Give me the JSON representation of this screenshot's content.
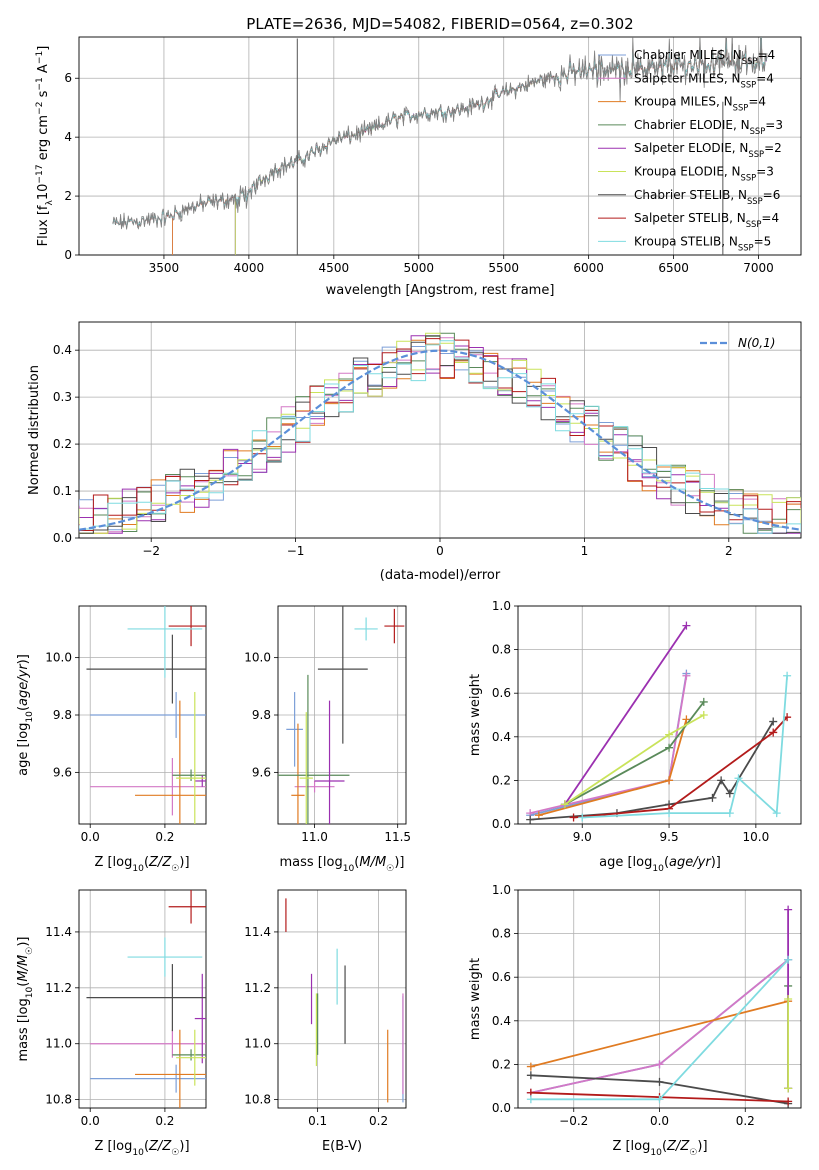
{
  "figure_title": "PLATE=2636, MJD=54082, FIBERID=0564, z=0.302",
  "colors": {
    "Chabrier MILES": "#7c9fd8",
    "Salpeter MILES": "#d378c6",
    "Kroupa MILES": "#e07b22",
    "Chabrier ELODIE": "#5a8a5a",
    "Salpeter ELODIE": "#9b30b0",
    "Kroupa ELODIE": "#c9e35a",
    "Chabrier STELIB": "#4b4b4b",
    "Salpeter STELIB": "#b31b1b",
    "Kroupa STELIB": "#7fdbe0",
    "gaussian": "#5b8fd9",
    "data": "#808080"
  },
  "chart_data": [
    {
      "id": "spectrum",
      "type": "line",
      "xlabel": "wavelength [Angstrom, rest frame]",
      "ylabel": "Flux [f_λ 10^-17 erg cm^-2 s^-1 A^-1]",
      "xlim": [
        3000,
        7250
      ],
      "ylim": [
        0,
        7.4
      ],
      "xticks": [
        3500,
        4000,
        4500,
        5000,
        5500,
        6000,
        6500,
        7000
      ],
      "yticks": [
        0,
        2,
        4,
        6
      ],
      "grid": true,
      "legend": "right",
      "legend_entries": [
        {
          "name": "Chabrier MILES",
          "nssp": "4"
        },
        {
          "name": "Salpeter MILES",
          "nssp": "4"
        },
        {
          "name": "Kroupa MILES",
          "nssp": "4"
        },
        {
          "name": "Chabrier ELODIE",
          "nssp": "3"
        },
        {
          "name": "Salpeter ELODIE",
          "nssp": "2"
        },
        {
          "name": "Kroupa ELODIE",
          "nssp": "3"
        },
        {
          "name": "Chabrier STELIB",
          "nssp": "6"
        },
        {
          "name": "Salpeter STELIB",
          "nssp": "4"
        },
        {
          "name": "Kroupa STELIB",
          "nssp": "5"
        }
      ],
      "continuum": [
        [
          3200,
          1.05
        ],
        [
          3500,
          1.25
        ],
        [
          3700,
          1.7
        ],
        [
          3900,
          1.9
        ],
        [
          4050,
          2.4
        ],
        [
          4150,
          2.9
        ],
        [
          4300,
          3.2
        ],
        [
          4500,
          3.9
        ],
        [
          4700,
          4.2
        ],
        [
          4850,
          4.6
        ],
        [
          5000,
          4.8
        ],
        [
          5200,
          4.9
        ],
        [
          5300,
          5.0
        ],
        [
          5500,
          5.5
        ],
        [
          5700,
          5.9
        ],
        [
          5900,
          6.2
        ],
        [
          6100,
          6.3
        ],
        [
          6300,
          6.3
        ],
        [
          6500,
          6.4
        ],
        [
          6700,
          6.5
        ],
        [
          7050,
          6.6
        ]
      ]
    },
    {
      "id": "residuals",
      "type": "line",
      "xlabel": "(data-model)/error",
      "ylabel": "Normed distribution",
      "xlim": [
        -2.5,
        2.5
      ],
      "ylim": [
        0,
        0.46
      ],
      "xticks": [
        -2,
        -1,
        0,
        1,
        2
      ],
      "yticks": [
        0.0,
        0.1,
        0.2,
        0.3,
        0.4
      ],
      "grid": true,
      "legend": "top-right",
      "legend_label": "N(0,1)"
    },
    {
      "id": "age-vs-Z",
      "type": "scatter",
      "xlabel": "Z [log10(Z/Z☉)]",
      "ylabel": "age  [log10(age/yr)]",
      "xlim": [
        -0.03,
        0.31
      ],
      "ylim": [
        9.42,
        10.18
      ],
      "xticks": [
        0.0,
        0.2
      ],
      "yticks": [
        9.6,
        9.8,
        10.0
      ],
      "grid": true,
      "points": [
        {
          "model": "Chabrier MILES",
          "x": 0.23,
          "xerr": 0.23,
          "y": 9.8,
          "yerr": 0.08
        },
        {
          "model": "Salpeter MILES",
          "x": 0.22,
          "xerr": 0.22,
          "y": 9.55,
          "yerr": 0.1
        },
        {
          "model": "Kroupa MILES",
          "x": 0.24,
          "xerr": 0.12,
          "y": 9.52,
          "yerr": 0.33
        },
        {
          "model": "Chabrier ELODIE",
          "x": 0.27,
          "xerr": 0.05,
          "y": 9.59,
          "yerr": 0.02
        },
        {
          "model": "Salpeter ELODIE",
          "x": 0.3,
          "xerr": 0.02,
          "y": 9.57,
          "yerr": 0.02
        },
        {
          "model": "Kroupa ELODIE",
          "x": 0.28,
          "xerr": 0.05,
          "y": 9.58,
          "yerr": 0.3
        },
        {
          "model": "Chabrier STELIB",
          "x": 0.22,
          "xerr": 0.23,
          "y": 9.96,
          "yerr": 0.12
        },
        {
          "model": "Salpeter STELIB",
          "x": 0.27,
          "xerr": 0.06,
          "y": 10.11,
          "yerr": 0.07
        },
        {
          "model": "Kroupa STELIB",
          "x": 0.2,
          "xerr": 0.1,
          "y": 10.1,
          "yerr": 0.17
        }
      ]
    },
    {
      "id": "age-vs-mass",
      "type": "scatter",
      "xlabel": "mass [log10(M/M☉)]",
      "ylabel": "",
      "xlim": [
        10.78,
        11.55
      ],
      "ylim": [
        9.42,
        10.18
      ],
      "xticks": [
        10.5,
        11.0,
        11.5
      ],
      "yticks": [
        9.6,
        9.8,
        10.0
      ],
      "grid": true,
      "points": [
        {
          "model": "Chabrier MILES",
          "x": 10.88,
          "xerr": 0.05,
          "y": 9.75,
          "yerr": 0.13
        },
        {
          "model": "Salpeter MILES",
          "x": 11.0,
          "xerr": 0.12,
          "y": 9.55,
          "yerr": 0.02
        },
        {
          "model": "Kroupa MILES",
          "x": 10.9,
          "xerr": 0.04,
          "y": 9.52,
          "yerr": 0.25
        },
        {
          "model": "Chabrier ELODIE",
          "x": 10.96,
          "xerr": 0.25,
          "y": 9.59,
          "yerr": 0.35
        },
        {
          "model": "Salpeter ELODIE",
          "x": 11.09,
          "xerr": 0.09,
          "y": 9.57,
          "yerr": 0.28
        },
        {
          "model": "Kroupa ELODIE",
          "x": 10.95,
          "xerr": 0.04,
          "y": 9.58,
          "yerr": 0.23
        },
        {
          "model": "Chabrier STELIB",
          "x": 11.17,
          "xerr": 0.15,
          "y": 9.96,
          "yerr": 0.26
        },
        {
          "model": "Salpeter STELIB",
          "x": 11.48,
          "xerr": 0.06,
          "y": 10.11,
          "yerr": 0.06
        },
        {
          "model": "Kroupa STELIB",
          "x": 11.31,
          "xerr": 0.07,
          "y": 10.1,
          "yerr": 0.04
        }
      ]
    },
    {
      "id": "weight-vs-age",
      "type": "line",
      "xlabel": "age  [log10(age/yr)]",
      "ylabel": "mass weight",
      "xlim": [
        8.63,
        10.26
      ],
      "ylim": [
        0,
        1.0
      ],
      "xticks": [
        9.0,
        9.5,
        10.0
      ],
      "yticks": [
        0.0,
        0.2,
        0.4,
        0.6,
        0.8,
        1.0
      ],
      "grid": true,
      "series": [
        {
          "model": "Chabrier MILES",
          "x": [
            8.7,
            9.5,
            9.6
          ],
          "y": [
            0.04,
            0.2,
            0.69
          ]
        },
        {
          "model": "Salpeter MILES",
          "x": [
            8.7,
            9.5,
            9.6
          ],
          "y": [
            0.05,
            0.2,
            0.68
          ]
        },
        {
          "model": "Kroupa MILES",
          "x": [
            8.75,
            9.5,
            9.6
          ],
          "y": [
            0.04,
            0.2,
            0.48
          ]
        },
        {
          "model": "Chabrier ELODIE",
          "x": [
            8.9,
            9.5,
            9.7
          ],
          "y": [
            0.09,
            0.35,
            0.56
          ]
        },
        {
          "model": "Salpeter ELODIE",
          "x": [
            8.9,
            9.6
          ],
          "y": [
            0.09,
            0.91
          ]
        },
        {
          "model": "Kroupa ELODIE",
          "x": [
            8.9,
            9.5,
            9.7
          ],
          "y": [
            0.09,
            0.41,
            0.5
          ]
        },
        {
          "model": "Chabrier STELIB",
          "x": [
            8.7,
            9.2,
            9.5,
            9.75,
            9.8,
            9.85,
            10.1
          ],
          "y": [
            0.02,
            0.05,
            0.09,
            0.12,
            0.2,
            0.14,
            0.47
          ]
        },
        {
          "model": "Salpeter STELIB",
          "x": [
            8.95,
            9.5,
            10.1,
            10.18
          ],
          "y": [
            0.03,
            0.07,
            0.42,
            0.49
          ]
        },
        {
          "model": "Kroupa STELIB",
          "x": [
            9.0,
            9.5,
            9.85,
            9.9,
            10.12,
            10.18
          ],
          "y": [
            0.03,
            0.05,
            0.05,
            0.21,
            0.05,
            0.68
          ]
        }
      ]
    },
    {
      "id": "mass-vs-Z",
      "type": "scatter",
      "xlabel": "Z [log10(Z/Z☉)]",
      "ylabel": "mass [log10(M/M☉)]",
      "xlim": [
        -0.03,
        0.31
      ],
      "ylim": [
        10.77,
        11.55
      ],
      "xticks": [
        0.0,
        0.2
      ],
      "yticks": [
        10.8,
        11.0,
        11.2,
        11.4
      ],
      "grid": true,
      "points": [
        {
          "model": "Chabrier MILES",
          "x": 0.23,
          "xerr": 0.23,
          "y": 10.875,
          "yerr": 0.05
        },
        {
          "model": "Salpeter MILES",
          "x": 0.22,
          "xerr": 0.22,
          "y": 11.0,
          "yerr": 0.05
        },
        {
          "model": "Kroupa MILES",
          "x": 0.24,
          "xerr": 0.12,
          "y": 10.89,
          "yerr": 0.16
        },
        {
          "model": "Chabrier ELODIE",
          "x": 0.27,
          "xerr": 0.05,
          "y": 10.96,
          "yerr": 0.02
        },
        {
          "model": "Salpeter ELODIE",
          "x": 0.3,
          "xerr": 0.02,
          "y": 11.09,
          "yerr": 0.16
        },
        {
          "model": "Kroupa ELODIE",
          "x": 0.28,
          "xerr": 0.05,
          "y": 10.95,
          "yerr": 0.1
        },
        {
          "model": "Chabrier STELIB",
          "x": 0.22,
          "xerr": 0.23,
          "y": 11.165,
          "yerr": 0.12
        },
        {
          "model": "Salpeter STELIB",
          "x": 0.27,
          "xerr": 0.06,
          "y": 11.49,
          "yerr": 0.06
        },
        {
          "model": "Kroupa STELIB",
          "x": 0.2,
          "xerr": 0.1,
          "y": 11.31,
          "yerr": 0.07
        }
      ]
    },
    {
      "id": "mass-vs-EBV",
      "type": "scatter",
      "xlabel": "E(B-V)",
      "ylabel": "",
      "xlim": [
        0.035,
        0.245
      ],
      "ylim": [
        10.77,
        11.55
      ],
      "xticks": [
        0.1,
        0.2
      ],
      "yticks": [
        10.8,
        11.0,
        11.2,
        11.4
      ],
      "grid": true,
      "points": [
        {
          "model": "Chabrier MILES",
          "x": 0.24,
          "y": 10.98,
          "yerr": 0.19
        },
        {
          "model": "Salpeter MILES",
          "x": 0.24,
          "y": 11.0,
          "yerr": 0.18
        },
        {
          "model": "Kroupa MILES",
          "x": 0.215,
          "y": 10.92,
          "yerr": 0.13
        },
        {
          "model": "Chabrier ELODIE",
          "x": 0.1,
          "y": 11.07,
          "yerr": 0.11
        },
        {
          "model": "Salpeter ELODIE",
          "x": 0.09,
          "y": 11.16,
          "yerr": 0.09
        },
        {
          "model": "Kroupa ELODIE",
          "x": 0.098,
          "y": 11.05,
          "yerr": 0.13
        },
        {
          "model": "Chabrier STELIB",
          "x": 0.145,
          "y": 11.14,
          "yerr": 0.14
        },
        {
          "model": "Salpeter STELIB",
          "x": 0.048,
          "y": 11.46,
          "yerr": 0.06
        },
        {
          "model": "Kroupa STELIB",
          "x": 0.132,
          "y": 11.24,
          "yerr": 0.1
        }
      ]
    },
    {
      "id": "weight-vs-Z",
      "type": "line",
      "xlabel": "Z [log10(Z/Z☉)]",
      "ylabel": "mass weight",
      "xlim": [
        -0.33,
        0.33
      ],
      "ylim": [
        0,
        1.0
      ],
      "xticks": [
        -0.2,
        0.0,
        0.2
      ],
      "yticks": [
        0.0,
        0.2,
        0.4,
        0.6,
        0.8,
        1.0
      ],
      "grid": true,
      "series": [
        {
          "model": "Chabrier MILES",
          "x": [
            -0.3,
            0.0,
            0.3
          ],
          "y": [
            0.07,
            0.2,
            0.68
          ]
        },
        {
          "model": "Salpeter MILES",
          "x": [
            -0.3,
            0.0,
            0.3
          ],
          "y": [
            0.07,
            0.2,
            0.68
          ]
        },
        {
          "model": "Kroupa MILES",
          "x": [
            -0.3,
            0.3
          ],
          "y": [
            0.19,
            0.49
          ]
        },
        {
          "model": "Chabrier ELODIE",
          "x": [
            0.3,
            0.3
          ],
          "y": [
            0.09,
            0.56
          ]
        },
        {
          "model": "Salpeter ELODIE",
          "x": [
            0.3,
            0.3
          ],
          "y": [
            0.09,
            0.91
          ]
        },
        {
          "model": "Kroupa ELODIE",
          "x": [
            0.3,
            0.3
          ],
          "y": [
            0.09,
            0.5
          ]
        },
        {
          "model": "Chabrier STELIB",
          "x": [
            -0.3,
            0.0,
            0.3
          ],
          "y": [
            0.15,
            0.12,
            0.02
          ]
        },
        {
          "model": "Salpeter STELIB",
          "x": [
            -0.3,
            0.0,
            0.3
          ],
          "y": [
            0.07,
            0.05,
            0.03
          ]
        },
        {
          "model": "Kroupa STELIB",
          "x": [
            -0.3,
            0.0,
            0.3
          ],
          "y": [
            0.04,
            0.04,
            0.68
          ]
        }
      ]
    }
  ]
}
